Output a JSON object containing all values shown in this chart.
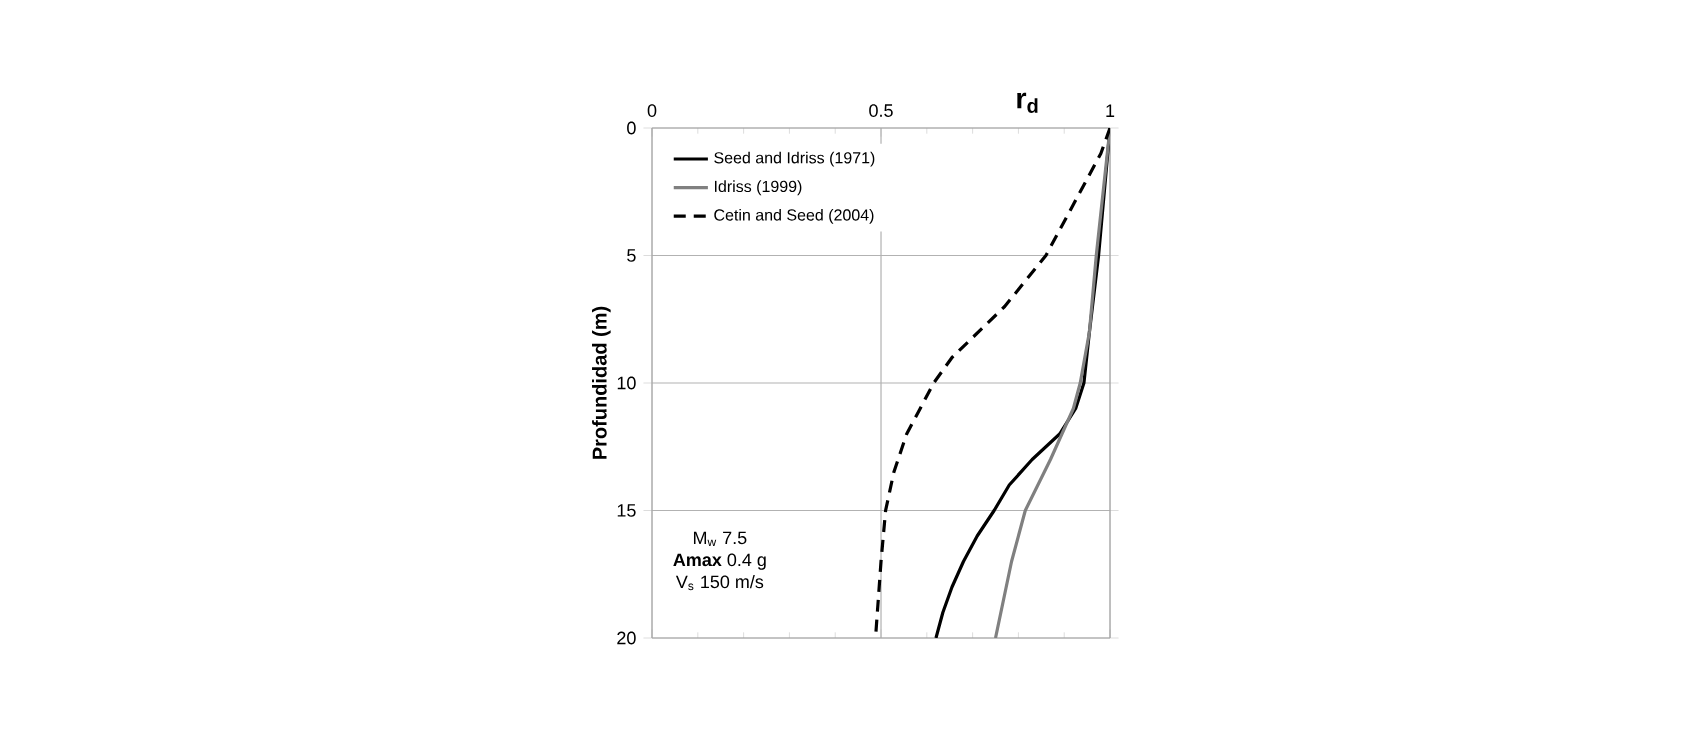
{
  "chart_data": {
    "type": "line",
    "xlabel": "r$_{d}$",
    "ylabel": "Profundidad (m)",
    "xlim": [
      0,
      1
    ],
    "xticks": [
      0,
      0.5,
      1
    ],
    "ylim": [
      20,
      0
    ],
    "yticks": [
      0,
      5,
      10,
      15,
      20
    ],
    "grid": true,
    "legend": "top left",
    "marker": "none",
    "annotations": [
      "M$_{w}$ 7.5",
      "**Amax** 0.4 g",
      "V$_{s}$ 150 m/s"
    ],
    "series": [
      {
        "name": "Seed and Idriss (1971)",
        "color": "#000000",
        "line_style": "solid",
        "x": [
          1,
          0.99,
          0.975,
          0.955,
          0.943,
          0.925,
          0.89,
          0.83,
          0.78,
          0.747,
          0.71,
          0.68,
          0.655,
          0.635,
          0.62
        ],
        "values": [
          0,
          2,
          5,
          8,
          10,
          11,
          12,
          13,
          14,
          15,
          16,
          17,
          18,
          19,
          20
        ]
      },
      {
        "name": "Idriss (1999)",
        "color": "#808080",
        "line_style": "solid",
        "x": [
          1,
          0.97,
          0.955,
          0.935,
          0.92,
          0.87,
          0.815,
          0.785,
          0.75
        ],
        "values": [
          0,
          5,
          8,
          10,
          11,
          13,
          15,
          17,
          20
        ]
      },
      {
        "name": "Cetin and Seed (2004)",
        "color": "#000000",
        "line_style": "dashed",
        "x": [
          1,
          0.98,
          0.92,
          0.86,
          0.77,
          0.655,
          0.615,
          0.556,
          0.528,
          0.51,
          0.5,
          0.488
        ],
        "values": [
          0,
          1,
          3,
          5,
          7,
          9,
          10,
          12,
          13.5,
          15,
          17,
          20
        ]
      }
    ]
  }
}
